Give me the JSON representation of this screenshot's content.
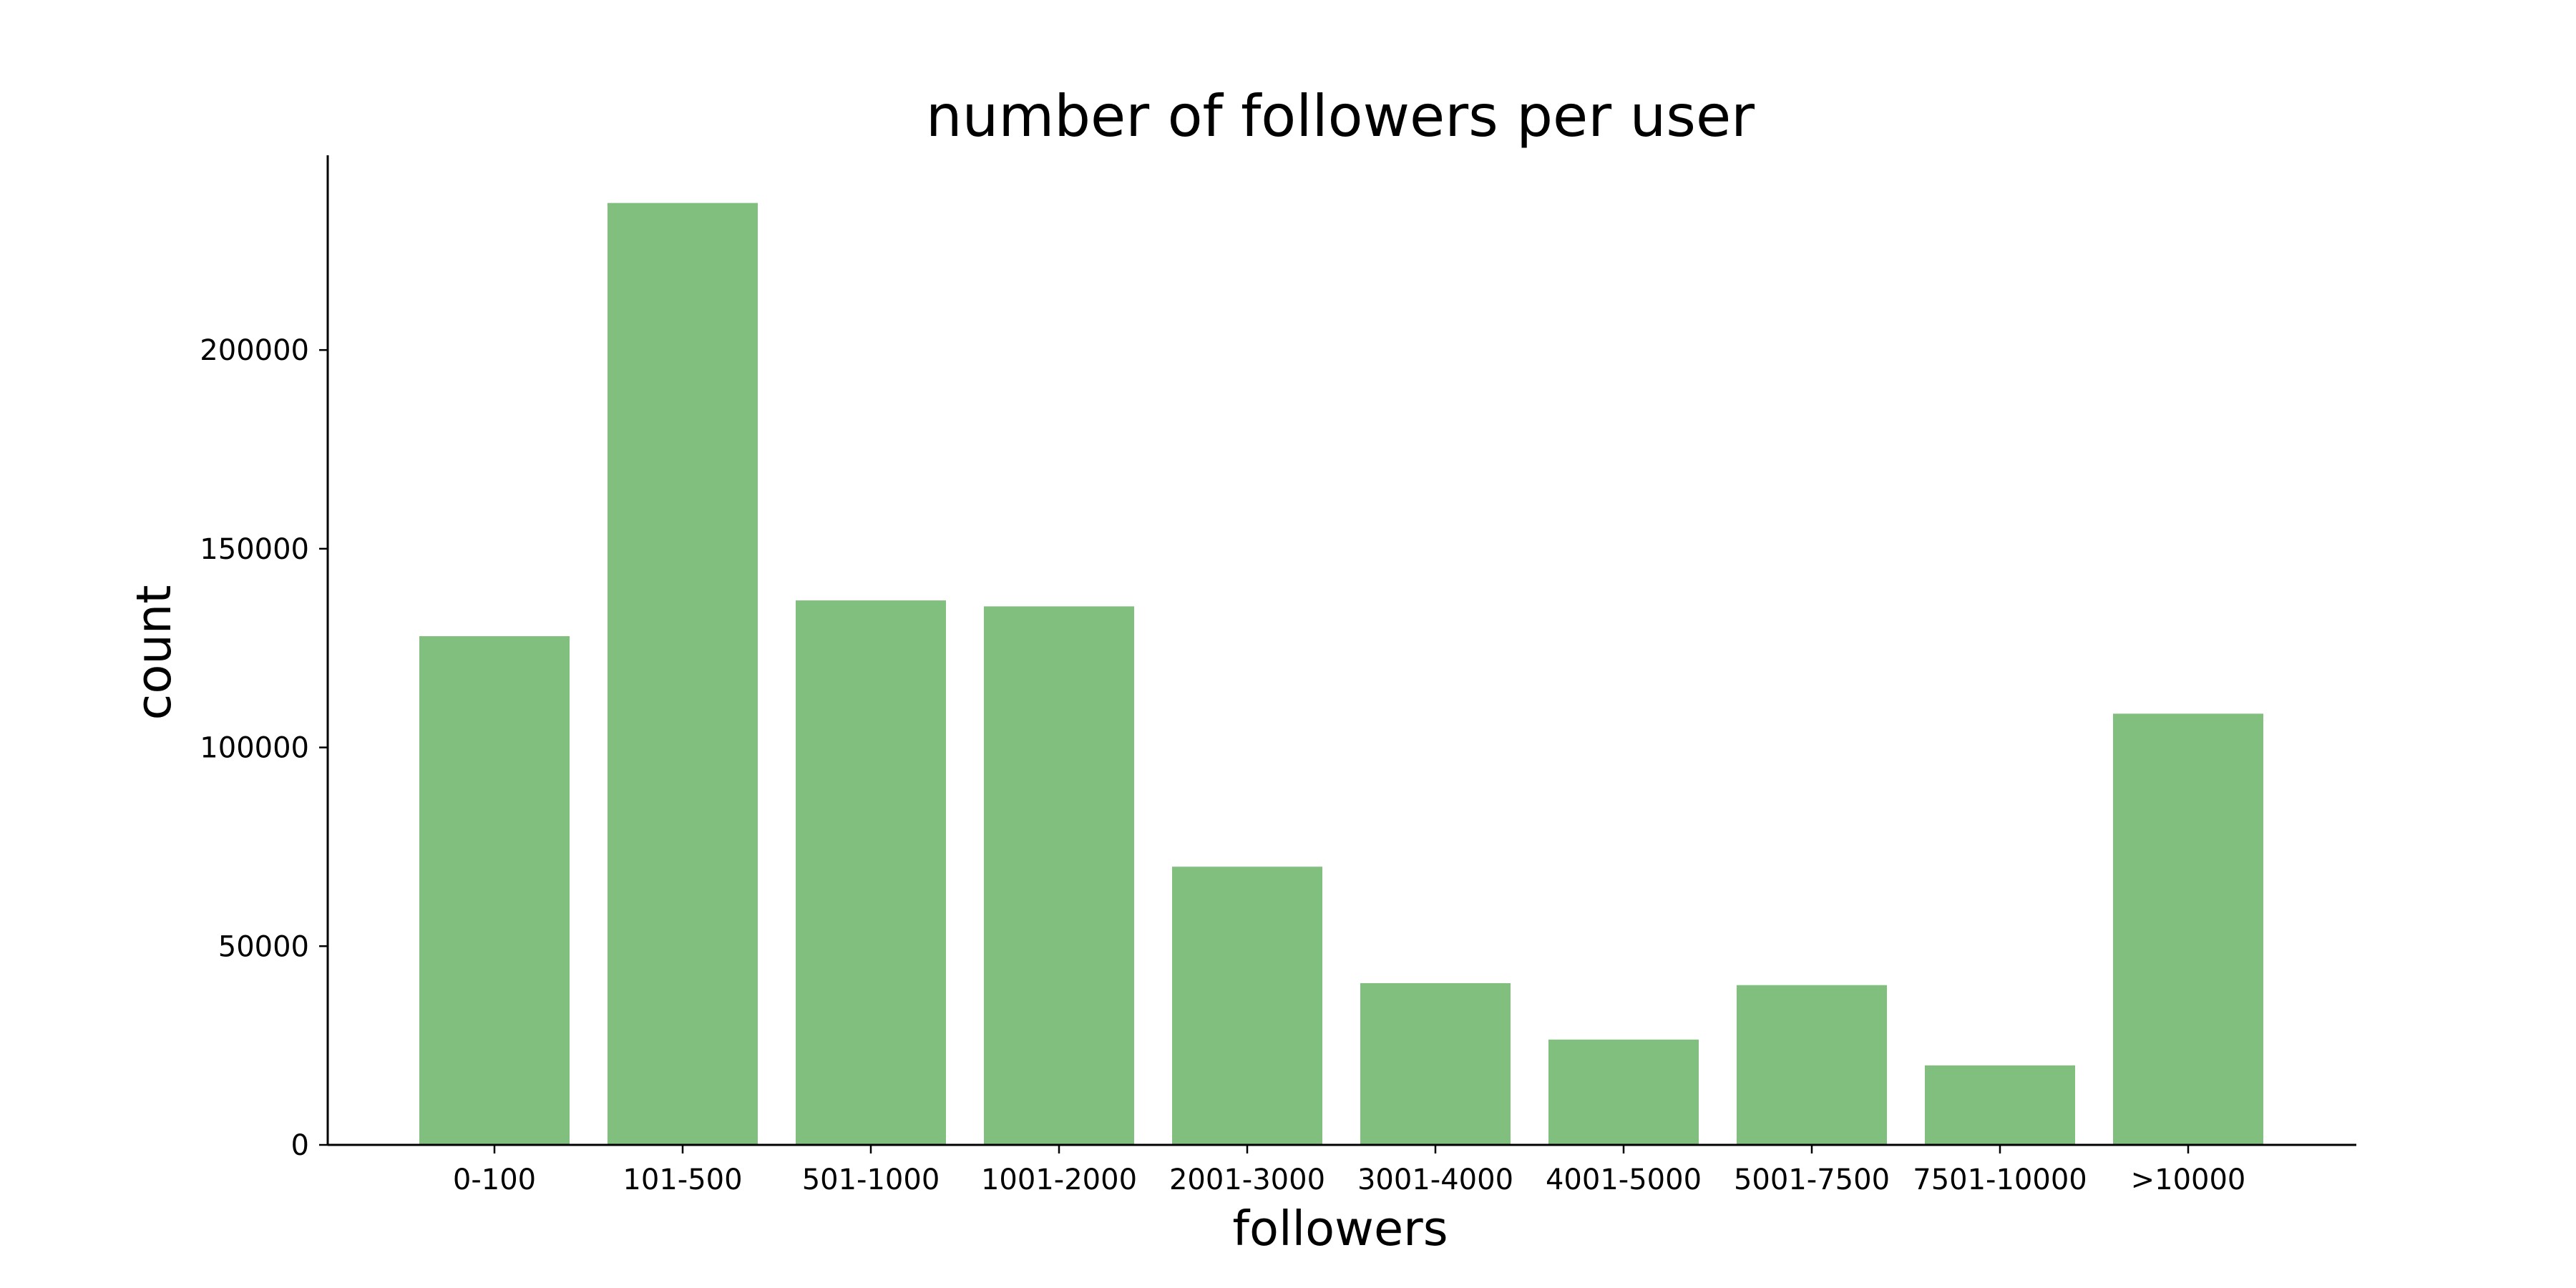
{
  "chart_data": {
    "type": "bar",
    "title": "number of followers per user",
    "xlabel": "followers",
    "ylabel": "count",
    "categories": [
      "0-100",
      "101-500",
      "501-1000",
      "1001-2000",
      "2001-3000",
      "3001-4000",
      "4001-5000",
      "5001-7500",
      "7501-10000",
      ">10000"
    ],
    "values": [
      128000,
      237000,
      137000,
      135500,
      70000,
      40700,
      26500,
      40200,
      20000,
      108500
    ],
    "ylim": [
      0,
      249000
    ],
    "yticks": [
      0,
      50000,
      100000,
      150000,
      200000
    ],
    "ytick_labels": [
      "0",
      "50000",
      "100000",
      "150000",
      "200000"
    ],
    "bar_color": "#81bf7e",
    "grid": false,
    "legend": "none"
  }
}
